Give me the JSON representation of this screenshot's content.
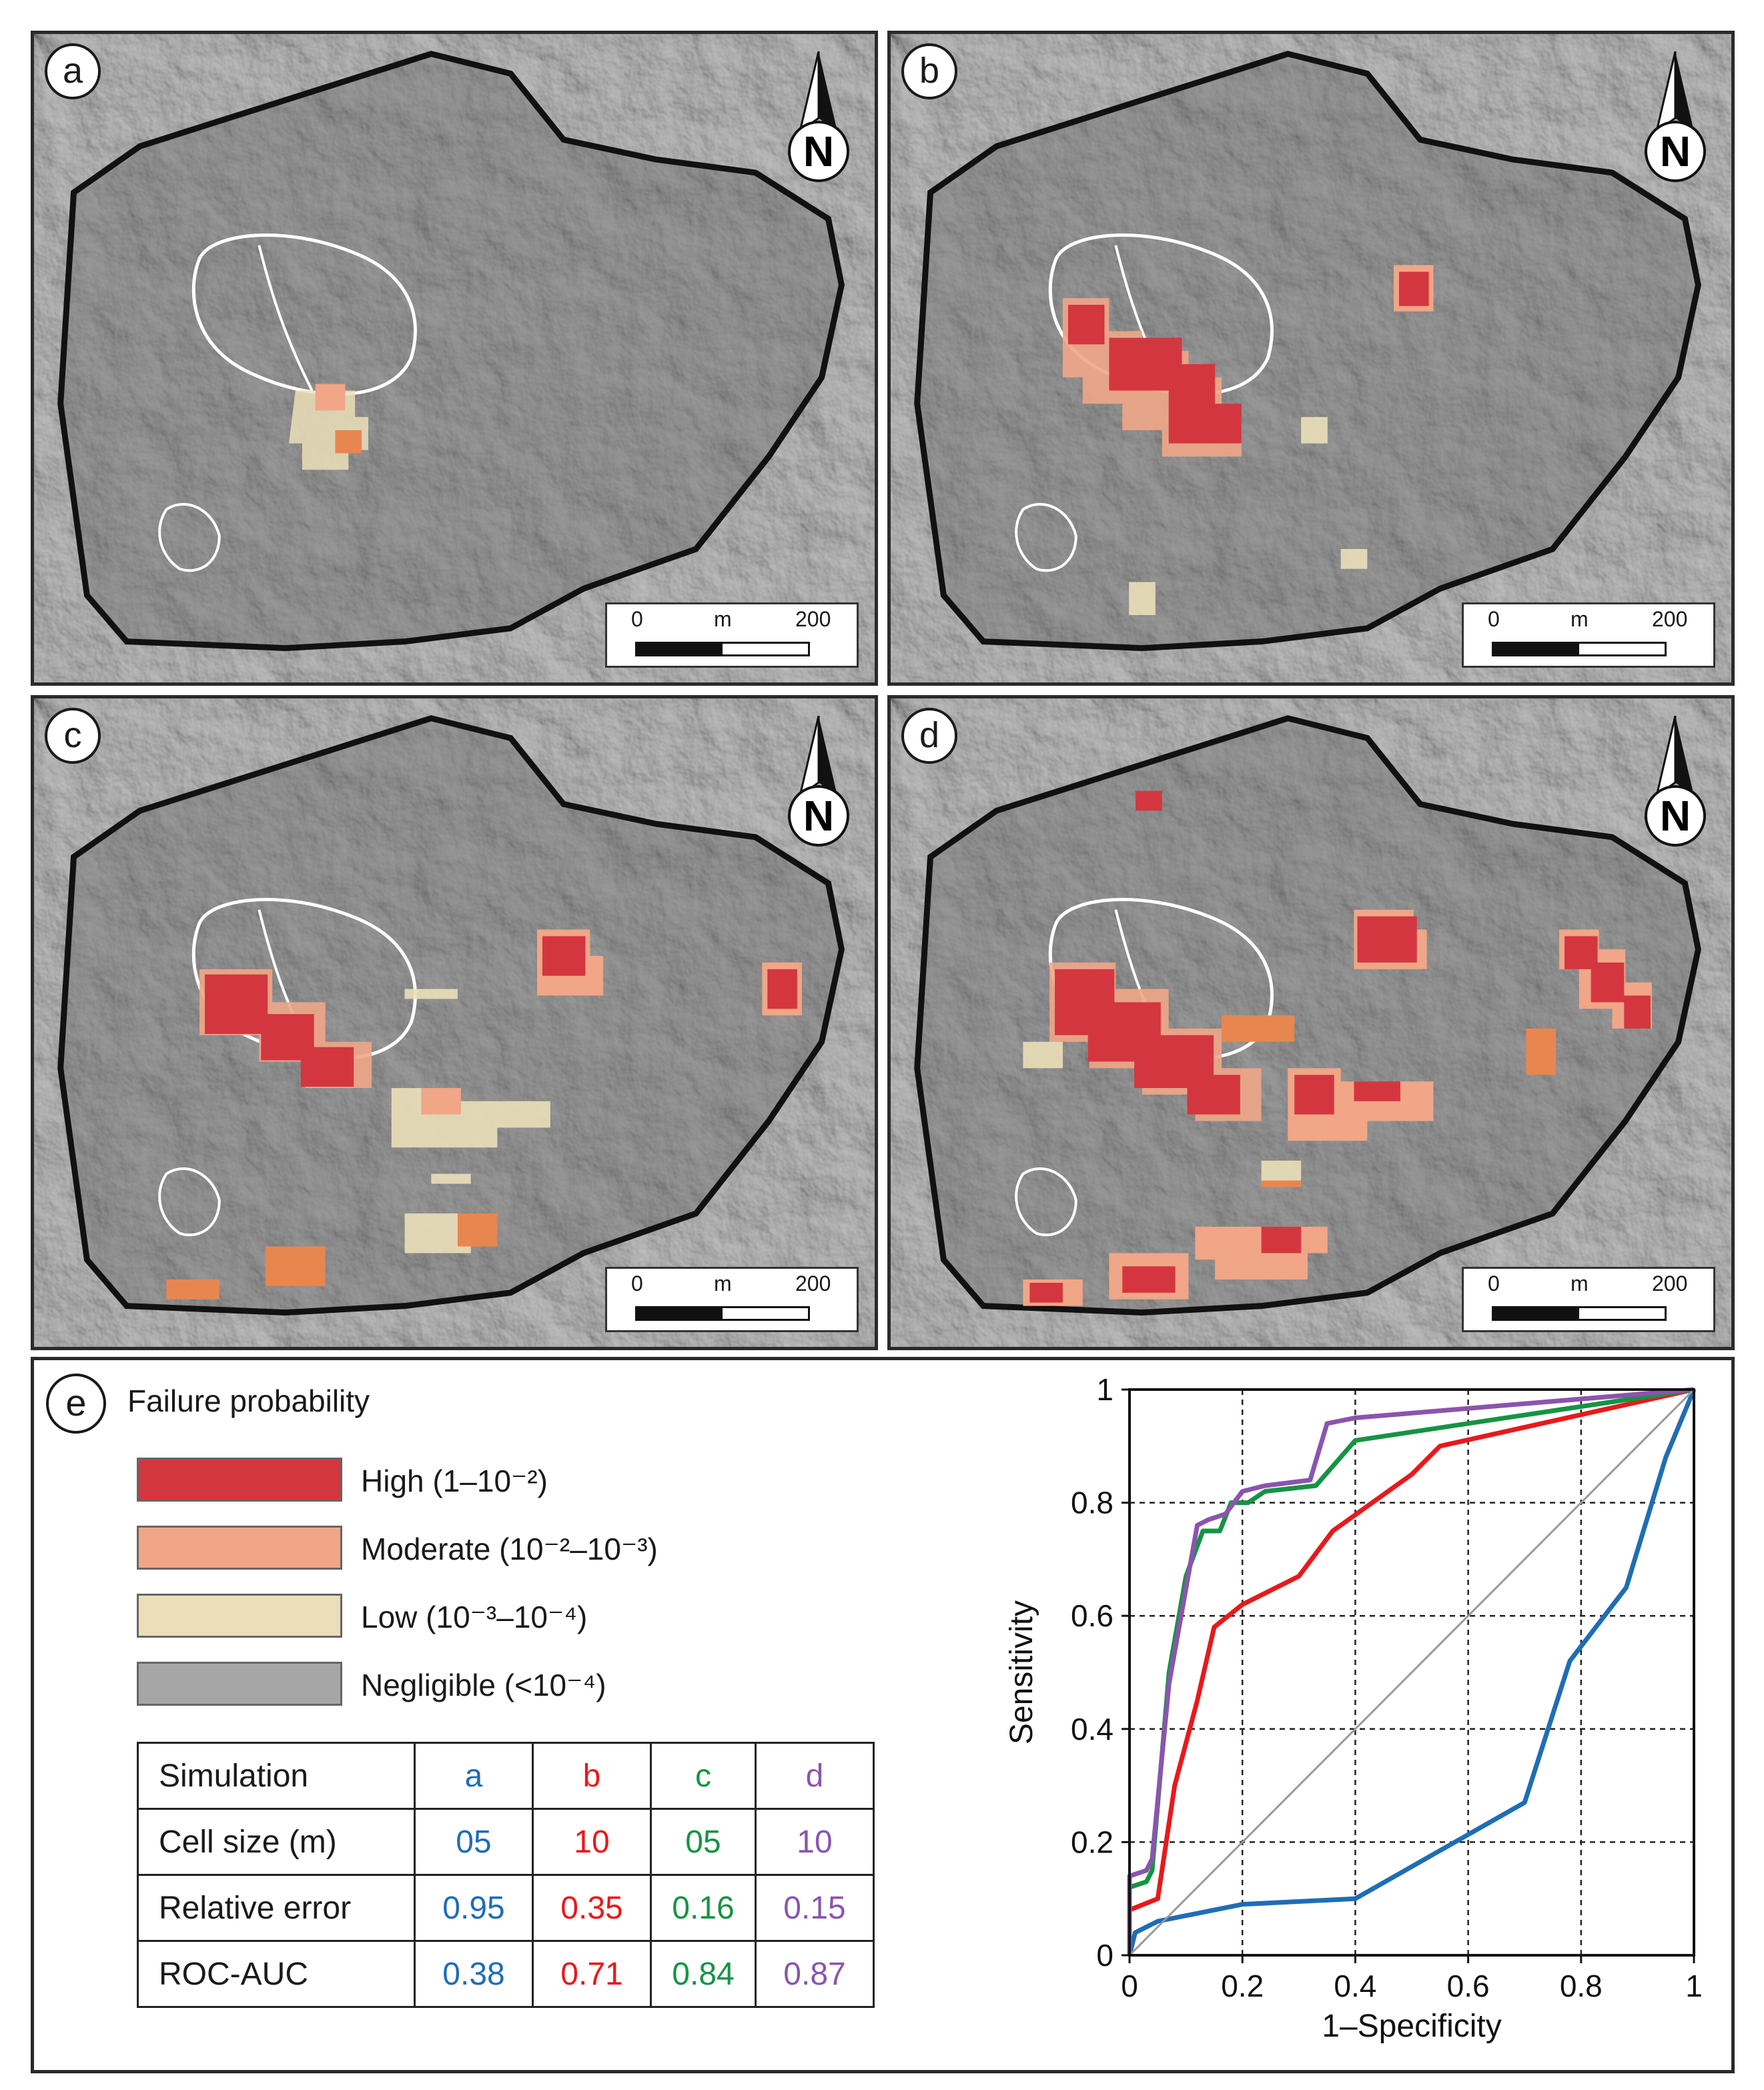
{
  "panels": [
    {
      "id": "a",
      "label": "a",
      "north": "N",
      "scale": {
        "start": "0",
        "unit": "m",
        "end": "200"
      }
    },
    {
      "id": "b",
      "label": "b",
      "north": "N",
      "scale": {
        "start": "0",
        "unit": "m",
        "end": "200"
      }
    },
    {
      "id": "c",
      "label": "c",
      "north": "N",
      "scale": {
        "start": "0",
        "unit": "m",
        "end": "200"
      }
    },
    {
      "id": "d",
      "label": "d",
      "north": "N",
      "scale": {
        "start": "0",
        "unit": "m",
        "end": "200"
      }
    }
  ],
  "legend": {
    "panel_label": "e",
    "title": "Failure probability",
    "classes": [
      {
        "label": "High (1–10⁻²)",
        "color": "#d4363f"
      },
      {
        "label": "Moderate (10⁻²–10⁻³)",
        "color": "#f0a687"
      },
      {
        "label": "Low (10⁻³–10⁻⁴)",
        "color": "#ebdfb9"
      },
      {
        "label": "Negligible (<10⁻⁴)",
        "color": "#a6a6a6"
      }
    ]
  },
  "table": {
    "headers": [
      "Simulation",
      "a",
      "b",
      "c",
      "d"
    ],
    "rows": [
      {
        "label": "Cell size (m)",
        "values": [
          "05",
          "10",
          "05",
          "10"
        ]
      },
      {
        "label": "Relative error",
        "values": [
          "0.95",
          "0.35",
          "0.16",
          "0.15"
        ]
      },
      {
        "label": "ROC-AUC",
        "values": [
          "0.38",
          "0.71",
          "0.84",
          "0.87"
        ]
      }
    ],
    "colors": [
      "#1f6db5",
      "#e8191b",
      "#169344",
      "#8a55ad"
    ]
  },
  "chart_data": {
    "type": "line",
    "xlabel": "1–Specificity",
    "ylabel": "Sensitivity",
    "xlim": [
      0,
      1
    ],
    "ylim": [
      0,
      1
    ],
    "xticks": [
      "0",
      "0.2",
      "0.4",
      "0.6",
      "0.8",
      "1"
    ],
    "yticks": [
      "0",
      "0.2",
      "0.4",
      "0.6",
      "0.8",
      "1"
    ],
    "grid": true,
    "series": [
      {
        "name": "a",
        "color": "#1f6db5",
        "x": [
          0,
          0.01,
          0.05,
          0.2,
          0.4,
          0.7,
          0.78,
          0.88,
          0.95,
          1
        ],
        "y": [
          0,
          0.04,
          0.06,
          0.09,
          0.1,
          0.27,
          0.52,
          0.65,
          0.88,
          1
        ]
      },
      {
        "name": "b",
        "color": "#e8191b",
        "x": [
          0,
          0,
          0.05,
          0.08,
          0.12,
          0.15,
          0.2,
          0.3,
          0.36,
          0.5,
          0.55,
          1
        ],
        "y": [
          0,
          0.08,
          0.1,
          0.3,
          0.45,
          0.58,
          0.62,
          0.67,
          0.75,
          0.85,
          0.9,
          1
        ]
      },
      {
        "name": "c",
        "color": "#169344",
        "x": [
          0,
          0,
          0.03,
          0.04,
          0.07,
          0.1,
          0.13,
          0.16,
          0.18,
          0.21,
          0.24,
          0.33,
          0.4,
          1
        ],
        "y": [
          0,
          0.12,
          0.13,
          0.15,
          0.5,
          0.67,
          0.75,
          0.75,
          0.8,
          0.8,
          0.82,
          0.83,
          0.91,
          1
        ]
      },
      {
        "name": "d",
        "color": "#8a55ad",
        "x": [
          0,
          0,
          0.03,
          0.04,
          0.07,
          0.12,
          0.14,
          0.17,
          0.2,
          0.24,
          0.32,
          0.35,
          0.4,
          1
        ],
        "y": [
          0,
          0.14,
          0.15,
          0.17,
          0.48,
          0.76,
          0.77,
          0.78,
          0.82,
          0.83,
          0.84,
          0.94,
          0.95,
          1
        ]
      },
      {
        "name": "reference",
        "color": "#9a9a9a",
        "x": [
          0,
          1
        ],
        "y": [
          0,
          1
        ]
      }
    ]
  }
}
